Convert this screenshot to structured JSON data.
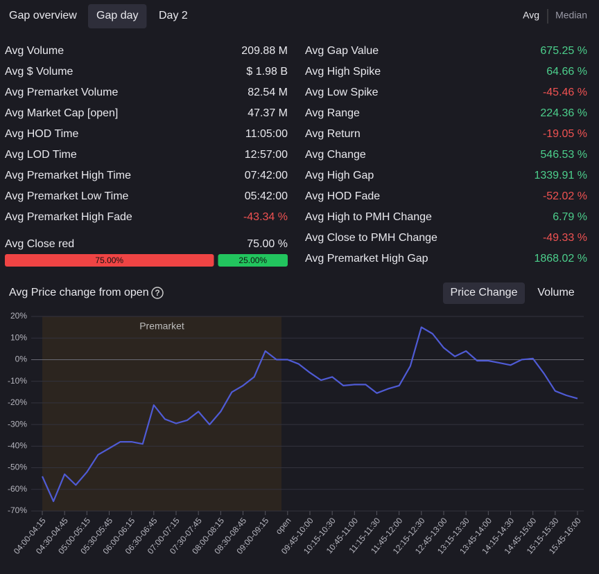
{
  "tabs": [
    "Gap overview",
    "Gap day",
    "Day 2"
  ],
  "active_tab": 1,
  "stat_modes": [
    "Avg",
    "Median"
  ],
  "active_mode": 0,
  "left_stats": [
    {
      "label": "Avg Volume",
      "value": "209.88 M"
    },
    {
      "label": "Avg $ Volume",
      "value": "$ 1.98 B"
    },
    {
      "label": "Avg Premarket Volume",
      "value": "82.54 M"
    },
    {
      "label": "Avg Market Cap [open]",
      "value": "47.37 M"
    },
    {
      "label": "Avg HOD Time",
      "value": "11:05:00"
    },
    {
      "label": "Avg LOD Time",
      "value": "12:57:00"
    },
    {
      "label": "Avg Premarket High Time",
      "value": "07:42:00"
    },
    {
      "label": "Avg Premarket Low Time",
      "value": "05:42:00"
    },
    {
      "label": "Avg Premarket High Fade",
      "value": "-43.34 %"
    }
  ],
  "close_red": {
    "label": "Avg Close red",
    "value": "75.00 %",
    "values": [
      75,
      25
    ],
    "value_labels": [
      "75.00%",
      "25.00%"
    ],
    "colors": [
      "#ef4444",
      "#22c55e"
    ]
  },
  "right_stats": [
    {
      "label": "Avg Gap Value",
      "value": "675.25 %"
    },
    {
      "label": "Avg High Spike",
      "value": "64.66 %"
    },
    {
      "label": "Avg Low Spike",
      "value": "-45.46 %"
    },
    {
      "label": "Avg Range",
      "value": "224.36 %"
    },
    {
      "label": "Avg Return",
      "value": "-19.05 %"
    },
    {
      "label": "Avg Change",
      "value": "546.53 %"
    },
    {
      "label": "Avg High Gap",
      "value": "1339.91 %"
    },
    {
      "label": "Avg HOD Fade",
      "value": "-52.02 %"
    },
    {
      "label": "Avg High to PMH Change",
      "value": "6.79 %"
    },
    {
      "label": "Avg Close to PMH Change",
      "value": "-49.33 %"
    },
    {
      "label": "Avg Premarket High Gap",
      "value": "1868.02 %"
    }
  ],
  "chart_buttons": [
    "Price Change",
    "Volume"
  ],
  "active_chart_button": 0,
  "chart_data": {
    "type": "line",
    "title": "Avg Price change from open",
    "categories": [
      "04:00-04:15",
      null,
      "04:30-04:45",
      null,
      "05:00-05:15",
      null,
      "05:30-05:45",
      null,
      "06:00-06:15",
      null,
      "06:30-06:45",
      null,
      "07:00-07:15",
      null,
      "07:30-07:45",
      null,
      "08:00-08:15",
      null,
      "08:30-08:45",
      null,
      "09:00-09:15",
      null,
      "open",
      null,
      "09:45-10:00",
      null,
      "10:15-10:30",
      null,
      "10:45-11:00",
      null,
      "11:15-11:30",
      null,
      "11:45-12:00",
      null,
      "12:15-12:30",
      null,
      "12:45-13:00",
      null,
      "13:15-13:30",
      null,
      "13:45-14:00",
      null,
      "14:15-14:30",
      null,
      "14:45-15:00",
      null,
      "15:15-15:30",
      null,
      "15:45-16:00"
    ],
    "series": [
      {
        "name": "Avg Price change from open",
        "color": "#4f5bd5",
        "values": [
          -54,
          -65.5,
          -53,
          -58,
          -52,
          -44,
          -41,
          -38,
          -38,
          -39,
          -21,
          -27.5,
          -29.5,
          -28,
          -24,
          -30,
          -24,
          -15,
          -12,
          -8,
          4,
          0,
          0,
          -2,
          -6,
          -9.5,
          -8,
          -12,
          -11.5,
          -11.5,
          -15.5,
          -13.5,
          -12,
          -3,
          15,
          12,
          5.5,
          1.5,
          4,
          -0.5,
          -0.5,
          -1.5,
          -2.5,
          0,
          0.5,
          -6.5,
          -14.5,
          -16.5,
          -18
        ]
      }
    ],
    "ylim": [
      -70,
      20
    ],
    "yticks": [
      {
        "value": 20,
        "label": "20%"
      },
      {
        "value": 10,
        "label": "10%"
      },
      {
        "value": 0,
        "label": "0%"
      },
      {
        "value": -10,
        "label": "-10%"
      },
      {
        "value": -20,
        "label": "-20%"
      },
      {
        "value": -30,
        "label": "-30%"
      },
      {
        "value": -40,
        "label": "-40%"
      },
      {
        "value": -50,
        "label": "-50%"
      },
      {
        "value": -60,
        "label": "-60%"
      },
      {
        "value": -70,
        "label": "-70%"
      }
    ],
    "grid": true,
    "shaded_region": {
      "label": "Premarket",
      "start": 0,
      "end": 21,
      "color": "#2c251f"
    }
  }
}
